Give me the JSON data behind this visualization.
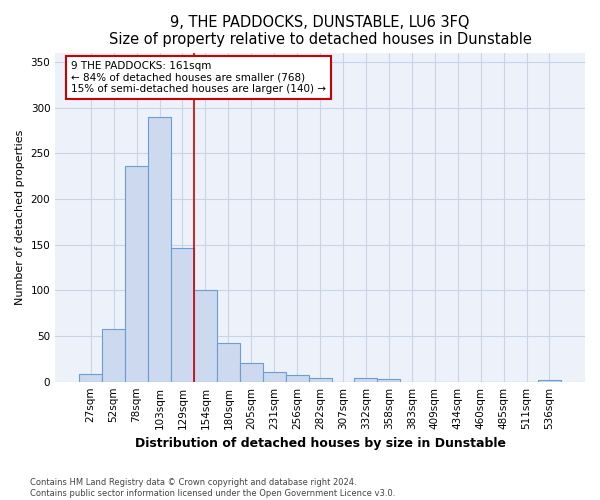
{
  "title": "9, THE PADDOCKS, DUNSTABLE, LU6 3FQ",
  "subtitle": "Size of property relative to detached houses in Dunstable",
  "xlabel": "Distribution of detached houses by size in Dunstable",
  "ylabel": "Number of detached properties",
  "bar_color": "#ccd9ee",
  "bar_edge_color": "#6b9ed2",
  "grid_color": "#c8d4e8",
  "background_color": "#ffffff",
  "plot_bg_color": "#edf1f9",
  "categories": [
    "27sqm",
    "52sqm",
    "78sqm",
    "103sqm",
    "129sqm",
    "154sqm",
    "180sqm",
    "205sqm",
    "231sqm",
    "256sqm",
    "282sqm",
    "307sqm",
    "332sqm",
    "358sqm",
    "383sqm",
    "409sqm",
    "434sqm",
    "460sqm",
    "485sqm",
    "511sqm",
    "536sqm"
  ],
  "values": [
    8,
    58,
    236,
    290,
    146,
    100,
    42,
    20,
    11,
    7,
    4,
    0,
    4,
    3,
    0,
    0,
    0,
    0,
    0,
    0,
    2
  ],
  "red_line_color": "#cc0000",
  "annotation_line1": "9 THE PADDOCKS: 161sqm",
  "annotation_line2": "← 84% of detached houses are smaller (768)",
  "annotation_line3": "15% of semi-detached houses are larger (140) →",
  "annotation_box_color": "white",
  "annotation_box_edge_color": "#cc0000",
  "ylim": [
    0,
    360
  ],
  "yticks": [
    0,
    50,
    100,
    150,
    200,
    250,
    300,
    350
  ],
  "footnote1": "Contains HM Land Registry data © Crown copyright and database right 2024.",
  "footnote2": "Contains public sector information licensed under the Open Government Licence v3.0.",
  "title_fontsize": 10.5,
  "subtitle_fontsize": 9.5,
  "tick_fontsize": 7.5,
  "ylabel_fontsize": 8,
  "xlabel_fontsize": 9,
  "annot_fontsize": 7.5,
  "footnote_fontsize": 6
}
